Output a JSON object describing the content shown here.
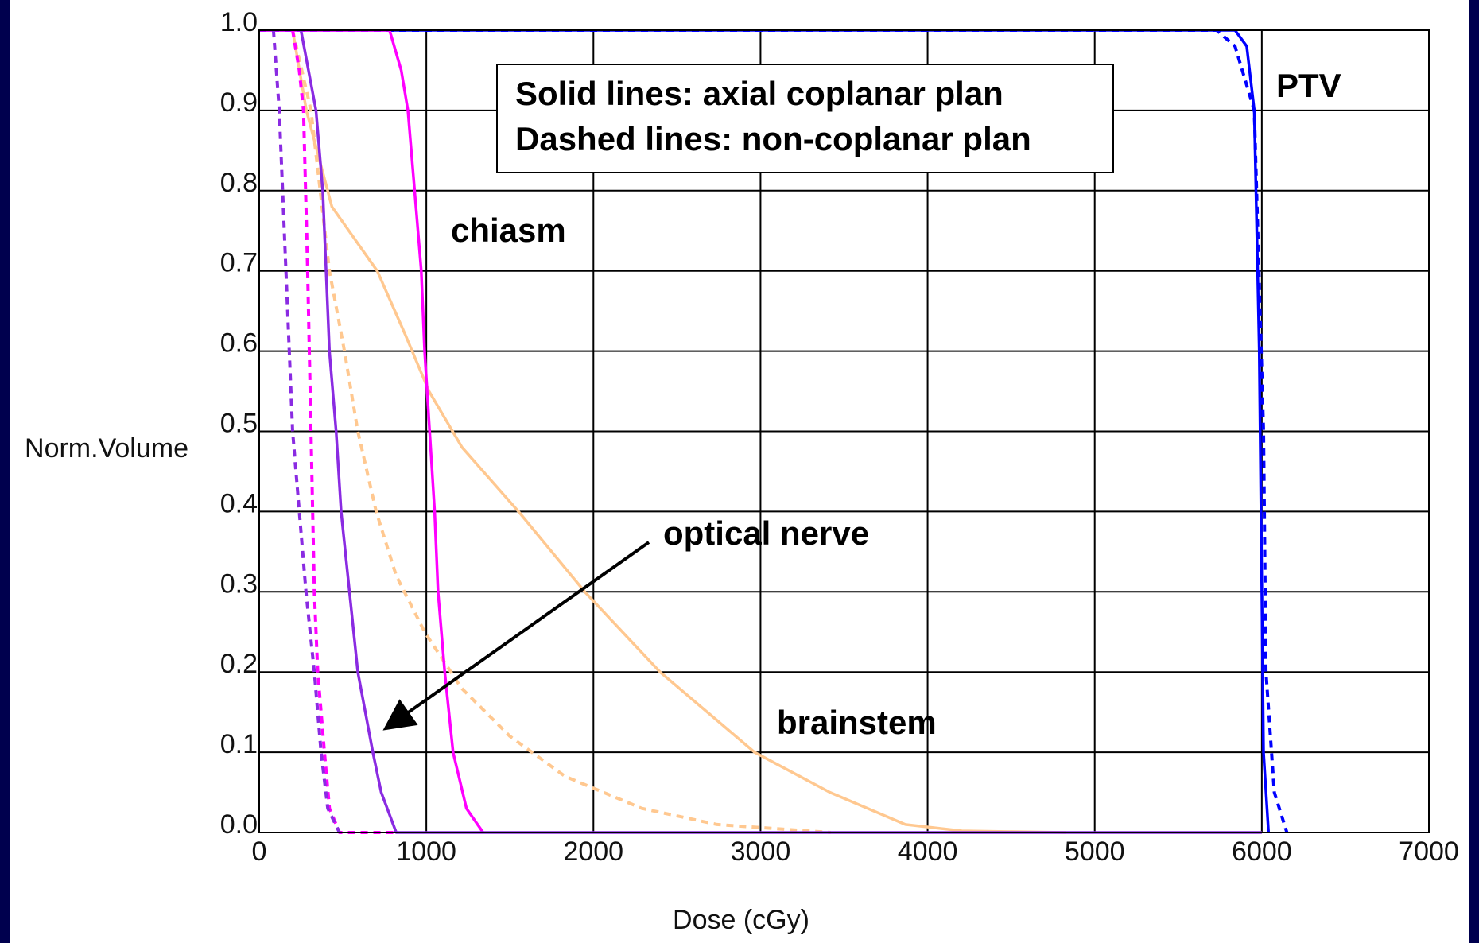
{
  "chart_data": {
    "type": "line",
    "xlabel": "Dose (cGy)",
    "ylabel": "Norm.Volume",
    "xlim": [
      0,
      7000
    ],
    "ylim": [
      0,
      1
    ],
    "xticks": [
      0,
      1000,
      2000,
      3000,
      4000,
      5000,
      6000,
      7000
    ],
    "yticks": [
      {
        "value": 0,
        "label": "0.0"
      },
      0.1,
      0.2,
      0.3,
      0.4,
      0.5,
      0.6,
      0.7,
      0.8,
      0.9,
      {
        "value": 1,
        "label": "1.0"
      }
    ],
    "grid": true,
    "note": [
      "Solid lines: axial coplanar plan",
      "Dashed lines: non-coplanar plan"
    ],
    "annotations": [
      "chiasm",
      "PTV",
      "optical nerve",
      "brainstem"
    ],
    "series": [
      {
        "color": "#ffc890",
        "dashed": false,
        "x": [
          200,
          282,
          435,
          706,
          875,
          1016,
          1214,
          1552,
          1948,
          2399,
          2964,
          3415,
          3867,
          4205,
          4826
        ],
        "values": [
          1,
          0.9,
          0.78,
          0.7,
          0.62,
          0.55,
          0.48,
          0.4,
          0.3,
          0.2,
          0.1,
          0.05,
          0.01,
          0.002,
          0
        ]
      },
      {
        "color": "#ffc890",
        "dashed": true,
        "x": [
          200,
          310,
          420,
          510,
          590,
          700,
          820,
          990,
          1210,
          1500,
          1830,
          2290,
          2740,
          3420
        ],
        "values": [
          1,
          0.9,
          0.7,
          0.6,
          0.5,
          0.4,
          0.32,
          0.25,
          0.18,
          0.12,
          0.07,
          0.03,
          0.01,
          0
        ]
      },
      {
        "color": "#0000ff",
        "dashed": false,
        "x": [
          0,
          5840,
          5910,
          5955,
          5985,
          6000,
          6010,
          6040
        ],
        "values": [
          1,
          1,
          0.98,
          0.9,
          0.6,
          0.3,
          0.1,
          0
        ]
      },
      {
        "color": "#0000ff",
        "dashed": true,
        "x": [
          0,
          5730,
          5840,
          5955,
          6010,
          6025,
          6075,
          6150
        ],
        "values": [
          1,
          1,
          0.98,
          0.9,
          0.5,
          0.2,
          0.05,
          0
        ]
      },
      {
        "color": "#ff00ff",
        "dashed": false,
        "x": [
          0,
          780,
          850,
          890,
          930,
          970,
          990,
          1020,
          1050,
          1070,
          1110,
          1160,
          1240,
          1340
        ],
        "values": [
          1,
          1,
          0.95,
          0.9,
          0.8,
          0.7,
          0.6,
          0.5,
          0.4,
          0.3,
          0.2,
          0.1,
          0.03,
          0
        ]
      },
      {
        "color": "#ff00ff",
        "dashed": true,
        "x": [
          200,
          240,
          265,
          290,
          310,
          330,
          350,
          390,
          420,
          480,
          820
        ],
        "values": [
          1,
          0.95,
          0.9,
          0.7,
          0.5,
          0.3,
          0.2,
          0.1,
          0.03,
          0,
          0
        ]
      },
      {
        "color": "#8a2be2",
        "dashed": false,
        "x": [
          250,
          340,
          380,
          420,
          460,
          490,
          540,
          590,
          680,
          730,
          820,
          6000
        ],
        "values": [
          1,
          0.9,
          0.8,
          0.6,
          0.5,
          0.4,
          0.3,
          0.2,
          0.1,
          0.05,
          0,
          0
        ]
      },
      {
        "color": "#8a2be2",
        "dashed": true,
        "x": [
          85,
          120,
          160,
          200,
          240,
          280,
          330,
          370,
          410,
          480
        ],
        "values": [
          1,
          0.9,
          0.7,
          0.5,
          0.4,
          0.3,
          0.2,
          0.1,
          0.03,
          0
        ]
      }
    ]
  }
}
